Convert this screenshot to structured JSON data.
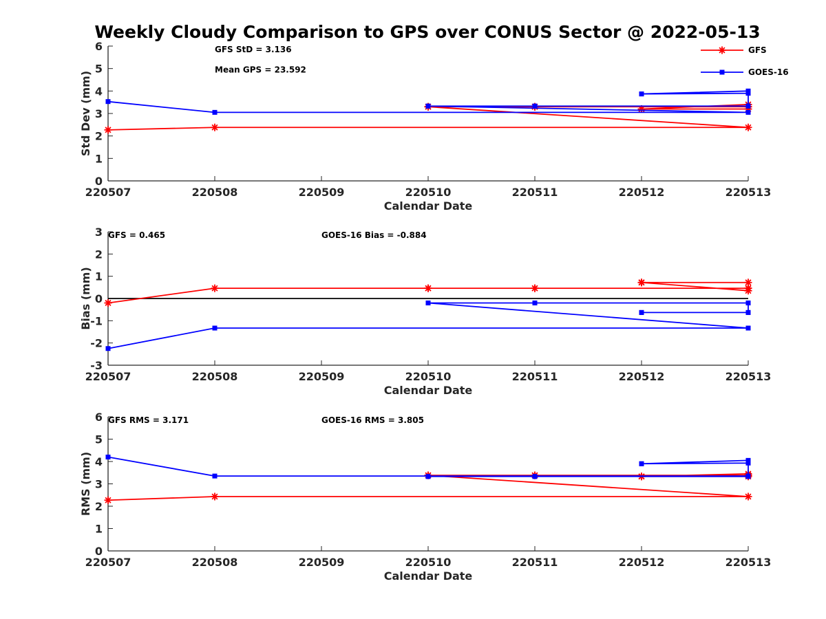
{
  "title": "Weekly Cloudy Comparison to GPS over CONUS Sector @ 2022-05-13",
  "legend": [
    {
      "name": "GFS",
      "color": "#ff0000",
      "marker": "asterisk"
    },
    {
      "name": "GOES-16",
      "color": "#0000ff",
      "marker": "square"
    }
  ],
  "chart_data": [
    {
      "type": "line",
      "xlabel": "Calendar Date",
      "ylabel": "Std Dev (mm)",
      "xticks": [
        "220507",
        "220508",
        "220509",
        "220510",
        "220511",
        "220512",
        "220513"
      ],
      "xlim": [
        0,
        6
      ],
      "ylim": [
        0,
        6
      ],
      "yticks": [
        "0",
        "1",
        "2",
        "3",
        "4",
        "5",
        "6"
      ],
      "zero_line": false,
      "annotations": [
        {
          "text": "GFS StD = 3.136",
          "x": 1.0,
          "y": 5.85
        },
        {
          "text": "Mean GPS = 23.592",
          "x": 1.0,
          "y": 4.95
        }
      ],
      "series": [
        {
          "name": "GFS",
          "color": "#ff0000",
          "marker": "asterisk",
          "x": [
            0,
            1,
            6,
            3,
            3,
            6,
            4,
            4,
            6,
            6,
            5,
            5,
            6
          ],
          "y": [
            2.27,
            2.38,
            2.38,
            3.3,
            3.3,
            3.3,
            3.3,
            3.3,
            3.3,
            3.4,
            3.2,
            3.2,
            3.2
          ]
        },
        {
          "name": "GOES-16",
          "color": "#0000ff",
          "marker": "square",
          "x": [
            0,
            1,
            6,
            3,
            3,
            6,
            4,
            4,
            6,
            6,
            5,
            5,
            6
          ],
          "y": [
            3.53,
            3.05,
            3.05,
            3.33,
            3.33,
            3.33,
            3.33,
            3.33,
            3.33,
            4.0,
            3.87,
            3.87,
            3.9
          ]
        }
      ]
    },
    {
      "type": "line",
      "xlabel": "Calendar Date",
      "ylabel": "Bias (mm)",
      "xticks": [
        "220507",
        "220508",
        "220509",
        "220510",
        "220511",
        "220512",
        "220513"
      ],
      "xlim": [
        0,
        6
      ],
      "ylim": [
        -3,
        3
      ],
      "yticks": [
        "-3",
        "-2",
        "-1",
        "0",
        "1",
        "2",
        "3"
      ],
      "zero_line": true,
      "annotations": [
        {
          "text": "GFS = 0.465",
          "x": 0.0,
          "y": 2.85
        },
        {
          "text": "GOES-16 Bias  = -0.884",
          "x": 2.0,
          "y": 2.85
        }
      ],
      "series": [
        {
          "name": "GFS",
          "color": "#ff0000",
          "marker": "asterisk",
          "x": [
            0,
            1,
            6,
            3,
            3,
            6,
            4,
            4,
            6,
            6,
            5,
            5,
            6
          ],
          "y": [
            -0.2,
            0.46,
            0.46,
            0.46,
            0.46,
            0.46,
            0.46,
            0.46,
            0.46,
            0.35,
            0.72,
            0.72,
            0.72
          ]
        },
        {
          "name": "GOES-16",
          "color": "#0000ff",
          "marker": "square",
          "x": [
            0,
            1,
            6,
            3,
            3,
            6,
            4,
            4,
            6,
            6,
            5,
            5,
            6
          ],
          "y": [
            -2.25,
            -1.33,
            -1.33,
            -0.2,
            -0.2,
            -0.2,
            -0.2,
            -0.2,
            -0.2,
            -0.63,
            -0.63,
            -0.63,
            -0.63
          ]
        }
      ]
    },
    {
      "type": "line",
      "xlabel": "Calendar Date",
      "ylabel": "RMS (mm)",
      "xticks": [
        "220507",
        "220508",
        "220509",
        "220510",
        "220511",
        "220512",
        "220513"
      ],
      "xlim": [
        0,
        6
      ],
      "ylim": [
        0,
        6
      ],
      "yticks": [
        "0",
        "1",
        "2",
        "3",
        "4",
        "5",
        "6"
      ],
      "zero_line": false,
      "annotations": [
        {
          "text": "GFS RMS = 3.171",
          "x": 0.0,
          "y": 5.85
        },
        {
          "text": "GOES-16 RMS = 3.805",
          "x": 2.0,
          "y": 5.85
        }
      ],
      "series": [
        {
          "name": "GFS",
          "color": "#ff0000",
          "marker": "asterisk",
          "x": [
            0,
            1,
            6,
            3,
            3,
            6,
            4,
            4,
            6,
            6,
            5,
            5,
            6
          ],
          "y": [
            2.27,
            2.43,
            2.43,
            3.38,
            3.38,
            3.38,
            3.38,
            3.38,
            3.38,
            3.45,
            3.33,
            3.33,
            3.33
          ]
        },
        {
          "name": "GOES-16",
          "color": "#0000ff",
          "marker": "square",
          "x": [
            0,
            1,
            6,
            3,
            3,
            6,
            4,
            4,
            6,
            6,
            5,
            5,
            6
          ],
          "y": [
            4.2,
            3.35,
            3.35,
            3.33,
            3.33,
            3.33,
            3.33,
            3.33,
            3.33,
            4.05,
            3.9,
            3.9,
            3.93
          ]
        }
      ]
    }
  ]
}
